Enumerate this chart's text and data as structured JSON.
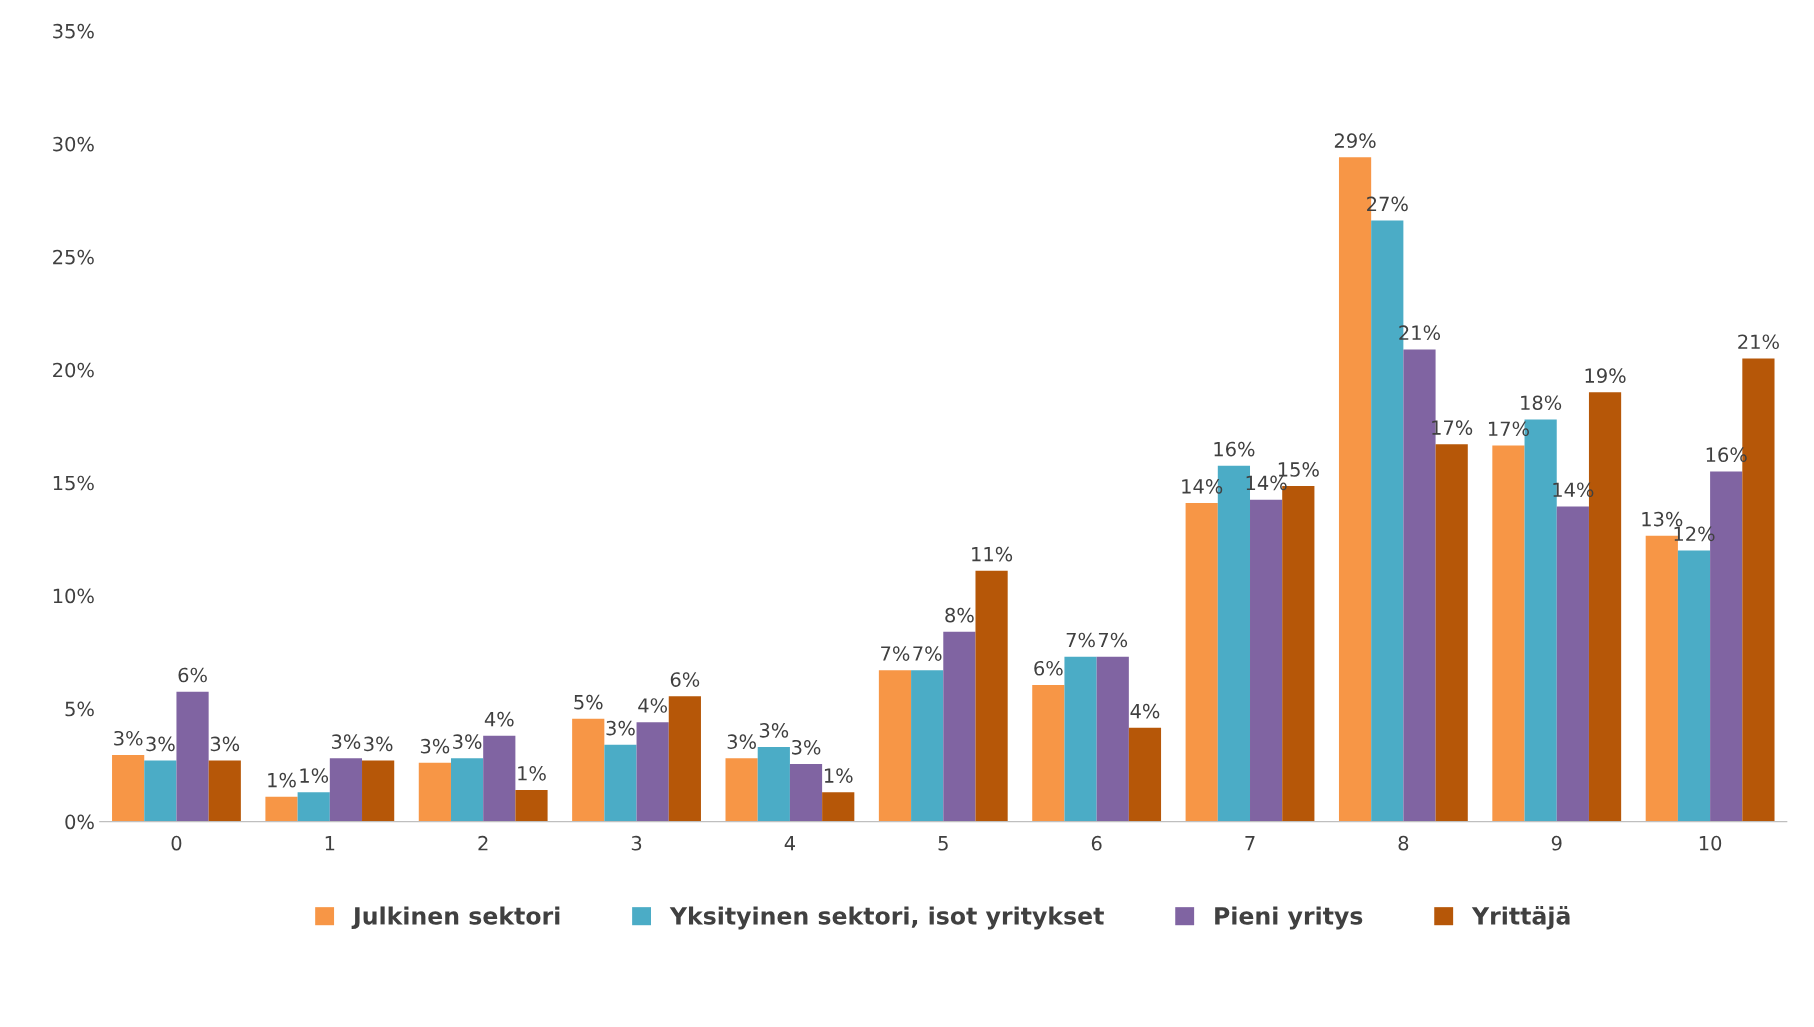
{
  "chart_data": {
    "type": "bar",
    "categories": [
      "0",
      "1",
      "2",
      "3",
      "4",
      "5",
      "6",
      "7",
      "8",
      "9",
      "10"
    ],
    "series": [
      {
        "name": "Julkinen sektori",
        "color": "#f79646",
        "values": [
          2.95,
          1.1,
          2.6,
          4.55,
          2.8,
          6.7,
          6.05,
          14.1,
          29.4,
          16.65,
          12.65
        ],
        "value_labels": [
          "3%",
          "1%",
          "3%",
          "5%",
          "3%",
          "7%",
          "6%",
          "14%",
          "29%",
          "17%",
          "13%"
        ]
      },
      {
        "name": "Yksityinen sektori, isot yritykset",
        "color": "#4bacc6",
        "values": [
          2.7,
          1.3,
          2.8,
          3.4,
          3.3,
          6.7,
          7.3,
          15.75,
          26.6,
          17.8,
          12.0
        ],
        "value_labels": [
          "3%",
          "1%",
          "3%",
          "3%",
          "3%",
          "7%",
          "7%",
          "16%",
          "27%",
          "18%",
          "12%"
        ]
      },
      {
        "name": "Pieni yritys",
        "color": "#8064a2",
        "values": [
          5.75,
          2.8,
          3.8,
          4.4,
          2.55,
          8.4,
          7.3,
          14.25,
          20.9,
          13.95,
          15.5
        ],
        "value_labels": [
          "6%",
          "3%",
          "4%",
          "4%",
          "3%",
          "8%",
          "7%",
          "14%",
          "21%",
          "14%",
          "16%"
        ]
      },
      {
        "name": "Yrittäjä",
        "color": "#b65708",
        "values": [
          2.7,
          2.7,
          1.4,
          5.55,
          1.3,
          11.1,
          4.15,
          14.85,
          16.7,
          19.0,
          20.5
        ],
        "value_labels": [
          "3%",
          "3%",
          "1%",
          "6%",
          "1%",
          "11%",
          "4%",
          "15%",
          "17%",
          "19%",
          "21%"
        ]
      }
    ],
    "ylim": [
      0,
      35
    ],
    "yticks": [
      {
        "value": 0,
        "label": "0%"
      },
      {
        "value": 5,
        "label": "5%"
      },
      {
        "value": 10,
        "label": "10%"
      },
      {
        "value": 15,
        "label": "15%"
      },
      {
        "value": 20,
        "label": "20%"
      },
      {
        "value": 25,
        "label": "25%"
      },
      {
        "value": 30,
        "label": "30%"
      },
      {
        "value": 35,
        "label": "35%"
      }
    ],
    "grid": false,
    "legend": "bottom"
  }
}
